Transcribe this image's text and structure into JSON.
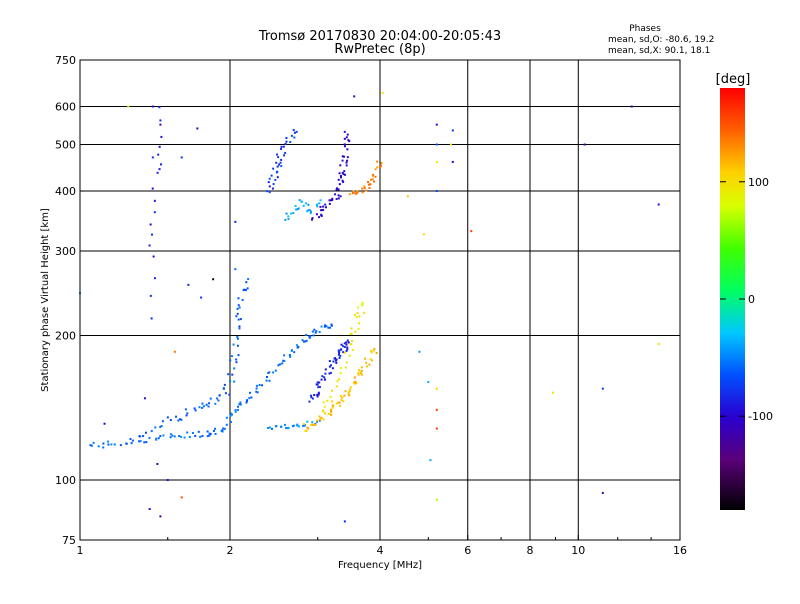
{
  "chart_data": {
    "type": "scatter",
    "title": "Tromsø 20170830 20:04:00-20:05:43",
    "subtitle": "RwPretec (8p)",
    "stats_title": "Phases",
    "stats_o": "mean, sd,O: -80.6, 19.2",
    "stats_x": "mean, sd,X:  90.1, 18.1",
    "xlabel": "Frequency [MHz]",
    "ylabel": "Stationary phase Virtual Height [km]",
    "x_scale": "log",
    "y_scale": "log",
    "xlim": [
      1,
      16
    ],
    "ylim": [
      75,
      750
    ],
    "x_ticks": [
      1,
      2,
      4,
      6,
      8,
      10,
      16
    ],
    "x_tick_labels": [
      "1",
      "2",
      "4",
      "6",
      "8",
      "10",
      "16"
    ],
    "x_grid": [
      2,
      4,
      6,
      8,
      10
    ],
    "y_ticks": [
      75,
      100,
      200,
      300,
      400,
      500,
      600,
      750
    ],
    "y_tick_labels": [
      "75",
      "100",
      "200",
      "300",
      "400",
      "500",
      "600",
      "750"
    ],
    "y_grid": [
      100,
      200,
      300,
      400,
      500,
      600
    ],
    "grid": true,
    "colorbar": {
      "label": "[deg]",
      "range": [
        -180,
        180
      ],
      "ticks": [
        100,
        0,
        -100
      ],
      "tick_labels": [
        "100",
        "0",
        "-100"
      ]
    },
    "series": [
      {
        "value_deg": -60,
        "curve": [
          [
            1.05,
            118
          ],
          [
            1.2,
            119
          ],
          [
            1.4,
            122
          ],
          [
            1.6,
            124
          ],
          [
            1.8,
            125
          ],
          [
            1.95,
            128
          ],
          [
            2.05,
            140
          ],
          [
            2.2,
            150
          ],
          [
            2.4,
            165
          ],
          [
            2.6,
            180
          ],
          [
            2.8,
            195
          ],
          [
            3.0,
            205
          ],
          [
            3.2,
            210
          ]
        ],
        "n": 120,
        "jitter": 0.03
      },
      {
        "value_deg": -65,
        "curve": [
          [
            1.3,
            122
          ],
          [
            1.5,
            133
          ],
          [
            1.7,
            140
          ],
          [
            1.9,
            146
          ],
          [
            2.0,
            160
          ],
          [
            2.05,
            190
          ],
          [
            2.1,
            230
          ],
          [
            2.15,
            260
          ]
        ],
        "n": 70,
        "jitter": 0.04
      },
      {
        "value_deg": -90,
        "curve": [
          [
            2.9,
            145
          ],
          [
            3.05,
            160
          ],
          [
            3.2,
            175
          ],
          [
            3.35,
            185
          ],
          [
            3.45,
            195
          ]
        ],
        "n": 55,
        "jitter": 0.03
      },
      {
        "value_deg": -105,
        "curve": [
          [
            2.95,
            350
          ],
          [
            3.1,
            370
          ],
          [
            3.3,
            390
          ],
          [
            3.35,
            430
          ],
          [
            3.4,
            470
          ],
          [
            3.45,
            530
          ]
        ],
        "n": 55,
        "jitter": 0.03
      },
      {
        "value_deg": -80,
        "curve": [
          [
            2.4,
            400
          ],
          [
            2.45,
            430
          ],
          [
            2.5,
            460
          ],
          [
            2.6,
            500
          ],
          [
            2.7,
            530
          ]
        ],
        "n": 35,
        "jitter": 0.04
      },
      {
        "value_deg": -40,
        "curve": [
          [
            2.6,
            350
          ],
          [
            2.7,
            365
          ],
          [
            2.8,
            380
          ],
          [
            2.9,
            360
          ],
          [
            3.0,
            380
          ]
        ],
        "n": 25,
        "jitter": 0.03
      },
      {
        "value_deg": -50,
        "curve": [
          [
            2.4,
            128
          ],
          [
            2.7,
            130
          ],
          [
            3.0,
            132
          ]
        ],
        "n": 25,
        "jitter": 0.02
      },
      {
        "value_deg": 115,
        "curve": [
          [
            2.8,
            128
          ],
          [
            3.1,
            135
          ],
          [
            3.3,
            145
          ],
          [
            3.5,
            155
          ],
          [
            3.7,
            170
          ],
          [
            3.9,
            190
          ]
        ],
        "n": 70,
        "jitter": 0.035
      },
      {
        "value_deg": 95,
        "curve": [
          [
            3.1,
            140
          ],
          [
            3.3,
            160
          ],
          [
            3.5,
            190
          ],
          [
            3.6,
            215
          ],
          [
            3.7,
            235
          ]
        ],
        "n": 35,
        "jitter": 0.04
      },
      {
        "value_deg": 135,
        "curve": [
          [
            3.5,
            395
          ],
          [
            3.65,
            400
          ],
          [
            3.8,
            410
          ],
          [
            3.9,
            430
          ],
          [
            4.0,
            460
          ]
        ],
        "n": 30,
        "jitter": 0.025
      },
      {
        "value_deg": -95,
        "curve": [
          [
            1.4,
            220
          ],
          [
            1.4,
            300
          ],
          [
            1.4,
            360
          ],
          [
            1.42,
            440
          ],
          [
            1.45,
            480
          ],
          [
            1.45,
            590
          ]
        ],
        "n": 18,
        "jitter": 0.03
      }
    ],
    "scattered_points": [
      [
        1.25,
        600,
        90
      ],
      [
        1.4,
        600,
        -100
      ],
      [
        1.45,
        550,
        -120
      ],
      [
        1.6,
        470,
        -80
      ],
      [
        1.72,
        540,
        -120
      ],
      [
        1.4,
        470,
        -90
      ],
      [
        1.55,
        185,
        140
      ],
      [
        1.35,
        148,
        -100
      ],
      [
        1.12,
        131,
        -110
      ],
      [
        1.43,
        108,
        -120
      ],
      [
        1.6,
        92,
        155
      ],
      [
        1.5,
        100,
        -110
      ],
      [
        1.38,
        87,
        -100
      ],
      [
        1.45,
        84,
        -130
      ],
      [
        1.0,
        245,
        -40
      ],
      [
        1.65,
        255,
        -90
      ],
      [
        1.75,
        240,
        -80
      ],
      [
        2.05,
        345,
        -90
      ],
      [
        3.4,
        82,
        -90
      ],
      [
        3.55,
        630,
        -120
      ],
      [
        4.05,
        640,
        95
      ],
      [
        4.55,
        390,
        115
      ],
      [
        4.9,
        325,
        100
      ],
      [
        5.05,
        110,
        -40
      ],
      [
        5.2,
        550,
        -100
      ],
      [
        5.2,
        500,
        -70
      ],
      [
        5.2,
        460,
        95
      ],
      [
        5.2,
        400,
        -70
      ],
      [
        5.2,
        155,
        110
      ],
      [
        5.2,
        140,
        160
      ],
      [
        5.2,
        128,
        160
      ],
      [
        5.2,
        91,
        70
      ],
      [
        5.6,
        535,
        -80
      ],
      [
        5.55,
        500,
        100
      ],
      [
        5.6,
        460,
        -110
      ],
      [
        6.1,
        330,
        160
      ],
      [
        8.9,
        152,
        95
      ],
      [
        10.3,
        500,
        -120
      ],
      [
        11.2,
        155,
        -80
      ],
      [
        11.2,
        94,
        -120
      ],
      [
        12.8,
        600,
        -120
      ],
      [
        14.5,
        375,
        -100
      ],
      [
        14.5,
        192,
        100
      ],
      [
        5.0,
        160,
        -40
      ],
      [
        4.8,
        185,
        -45
      ],
      [
        2.05,
        275,
        -60
      ],
      [
        1.85,
        262,
        -170
      ]
    ]
  }
}
